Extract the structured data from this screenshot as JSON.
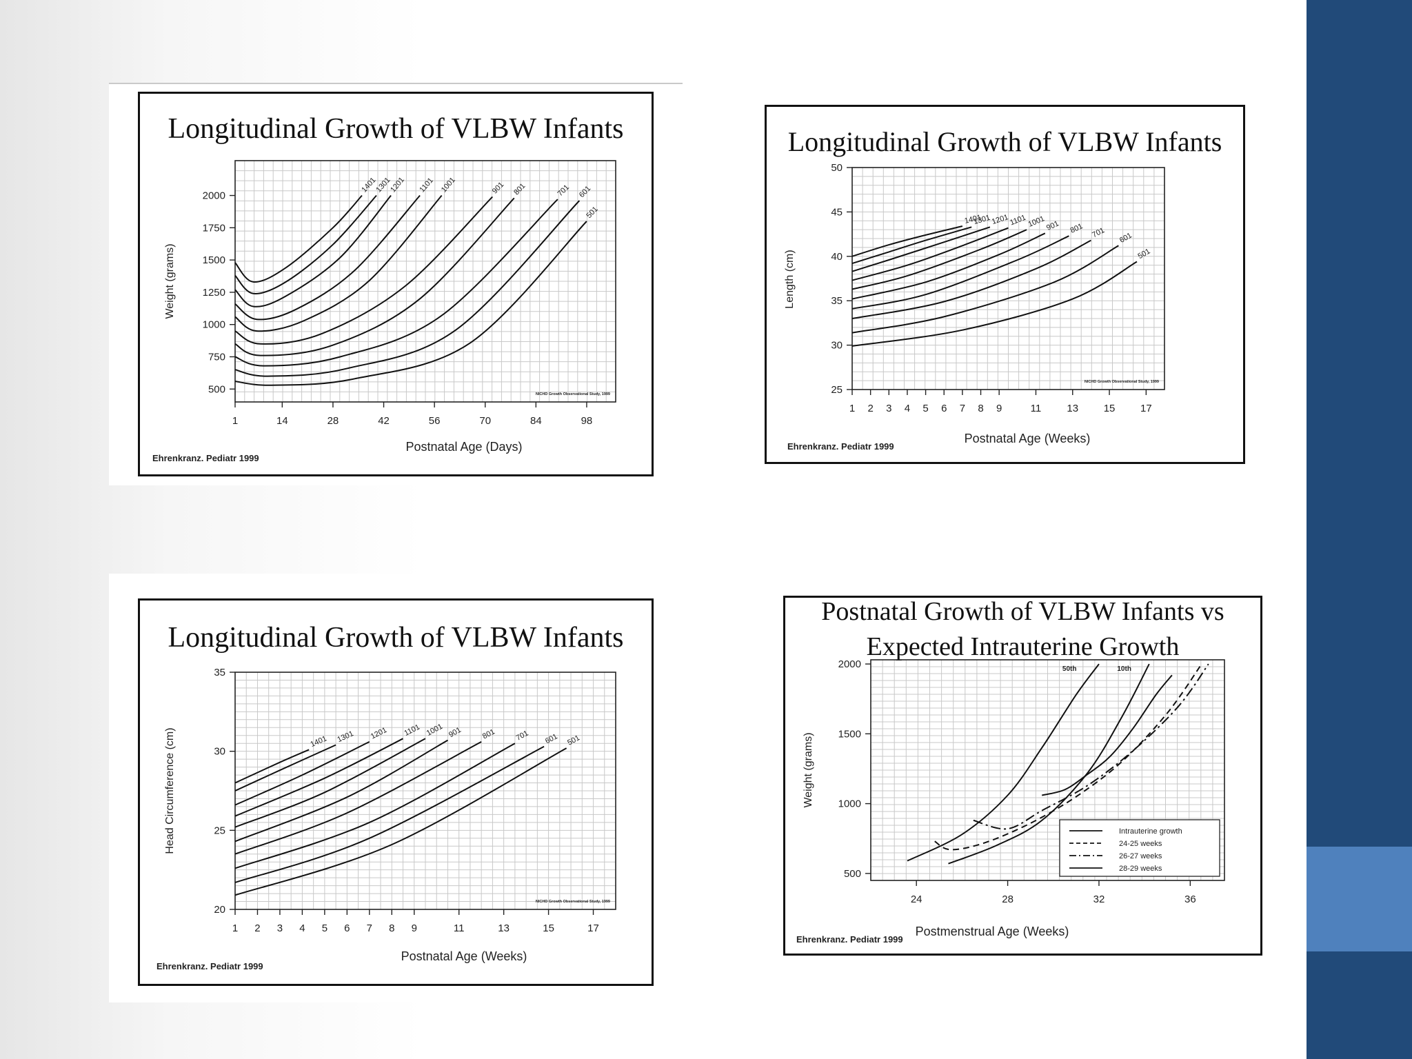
{
  "slide": {
    "accent_color": "#214a79",
    "accent_light": "#4f81bd"
  },
  "chart_data": [
    {
      "id": "weight",
      "type": "line",
      "title": "Longitudinal Growth of VLBW Infants",
      "xlabel": "Postnatal Age (Days)",
      "ylabel": "Weight (grams)",
      "xlim": [
        1,
        106
      ],
      "ylim": [
        400,
        2270
      ],
      "x_ticks": [
        1,
        14,
        28,
        42,
        56,
        70,
        84,
        98
      ],
      "y_ticks": [
        500,
        750,
        1000,
        1250,
        1500,
        1750,
        2000
      ],
      "source": "Ehrenkranz. Pediatr 1999",
      "note": "NICHD Growth Observational Study, 1999",
      "series": [
        {
          "name": "1401",
          "x": [
            1,
            6,
            15,
            28,
            36
          ],
          "y": [
            1480,
            1330,
            1440,
            1750,
            2000
          ]
        },
        {
          "name": "1301",
          "x": [
            1,
            6,
            15,
            28,
            40
          ],
          "y": [
            1380,
            1240,
            1330,
            1620,
            2000
          ]
        },
        {
          "name": "1201",
          "x": [
            1,
            6,
            15,
            30,
            44
          ],
          "y": [
            1270,
            1140,
            1220,
            1520,
            2000
          ]
        },
        {
          "name": "1101",
          "x": [
            1,
            7,
            18,
            34,
            52
          ],
          "y": [
            1160,
            1040,
            1120,
            1420,
            2000
          ]
        },
        {
          "name": "1001",
          "x": [
            1,
            7,
            20,
            38,
            58
          ],
          "y": [
            1060,
            950,
            1030,
            1340,
            2000
          ]
        },
        {
          "name": "901",
          "x": [
            1,
            8,
            25,
            48,
            72
          ],
          "y": [
            950,
            850,
            930,
            1300,
            1990
          ]
        },
        {
          "name": "801",
          "x": [
            1,
            8,
            28,
            52,
            78
          ],
          "y": [
            850,
            760,
            840,
            1200,
            1980
          ]
        },
        {
          "name": "701",
          "x": [
            1,
            9,
            30,
            58,
            90
          ],
          "y": [
            750,
            680,
            750,
            1070,
            1970
          ]
        },
        {
          "name": "601",
          "x": [
            1,
            10,
            32,
            62,
            96
          ],
          "y": [
            650,
            600,
            660,
            960,
            1960
          ]
        },
        {
          "name": "501",
          "x": [
            1,
            11,
            34,
            66,
            98
          ],
          "y": [
            560,
            530,
            580,
            860,
            1800
          ]
        }
      ]
    },
    {
      "id": "length",
      "type": "line",
      "title": "Longitudinal Growth of VLBW Infants",
      "xlabel": "Postnatal Age (Weeks)",
      "ylabel": "Length (cm)",
      "xlim": [
        1,
        18
      ],
      "ylim": [
        25,
        50
      ],
      "x_ticks": [
        1,
        2,
        3,
        4,
        5,
        6,
        7,
        8,
        9,
        11,
        13,
        15,
        17
      ],
      "y_ticks": [
        25,
        30,
        35,
        40,
        45,
        50
      ],
      "source": "Ehrenkranz. Pediatr 1999",
      "note": "NICHD Growth Observational Study, 1999",
      "series": [
        {
          "name": "1401",
          "x": [
            1,
            3,
            5,
            7
          ],
          "y": [
            40,
            41.3,
            42.4,
            43.4
          ]
        },
        {
          "name": "1301",
          "x": [
            1,
            3,
            5,
            7.5
          ],
          "y": [
            39.2,
            40.5,
            41.8,
            43.3
          ]
        },
        {
          "name": "1201",
          "x": [
            1,
            3,
            6,
            8.5
          ],
          "y": [
            38.3,
            39.6,
            41.6,
            43.3
          ]
        },
        {
          "name": "1101",
          "x": [
            1,
            4,
            7,
            9.5
          ],
          "y": [
            37.3,
            39,
            41.2,
            43.2
          ]
        },
        {
          "name": "1001",
          "x": [
            1,
            4,
            8,
            10.5
          ],
          "y": [
            36.3,
            37.8,
            40.8,
            43
          ]
        },
        {
          "name": "901",
          "x": [
            1,
            5,
            9,
            11.5
          ],
          "y": [
            35.2,
            37.1,
            40.2,
            42.6
          ]
        },
        {
          "name": "801",
          "x": [
            1,
            5,
            10,
            12.8
          ],
          "y": [
            34.1,
            35.7,
            39.6,
            42.3
          ]
        },
        {
          "name": "701",
          "x": [
            1,
            6,
            11,
            14
          ],
          "y": [
            33,
            34.9,
            38.6,
            41.8
          ]
        },
        {
          "name": "601",
          "x": [
            1,
            6,
            12,
            15.5
          ],
          "y": [
            31.4,
            33.2,
            37.1,
            41.2
          ]
        },
        {
          "name": "501",
          "x": [
            1,
            7,
            13,
            16.5
          ],
          "y": [
            29.9,
            31.7,
            35.2,
            39.4
          ]
        }
      ]
    },
    {
      "id": "head",
      "type": "line",
      "title": "Longitudinal Growth of VLBW Infants",
      "xlabel": "Postnatal Age (Weeks)",
      "ylabel": "Head Circumference (cm)",
      "xlim": [
        1,
        18
      ],
      "ylim": [
        20,
        35
      ],
      "x_ticks": [
        1,
        2,
        3,
        4,
        5,
        6,
        7,
        8,
        9,
        11,
        13,
        15,
        17
      ],
      "y_ticks": [
        20,
        25,
        30,
        35
      ],
      "source": "Ehrenkranz. Pediatr 1999",
      "note": "NICHD Growth Observational Study, 1999",
      "series": [
        {
          "name": "1401",
          "x": [
            1,
            3,
            4.3
          ],
          "y": [
            28,
            29.3,
            30.1
          ]
        },
        {
          "name": "1301",
          "x": [
            1,
            3,
            5.5
          ],
          "y": [
            27.5,
            28.8,
            30.4
          ]
        },
        {
          "name": "1201",
          "x": [
            1,
            4,
            7
          ],
          "y": [
            26.6,
            28.5,
            30.6
          ]
        },
        {
          "name": "1101",
          "x": [
            1,
            5,
            8.5
          ],
          "y": [
            25.9,
            28.3,
            30.8
          ]
        },
        {
          "name": "1001",
          "x": [
            1,
            5,
            9.5
          ],
          "y": [
            25.2,
            27.4,
            30.8
          ]
        },
        {
          "name": "901",
          "x": [
            1,
            6,
            10.5
          ],
          "y": [
            24.3,
            27.1,
            30.7
          ]
        },
        {
          "name": "801",
          "x": [
            1,
            6,
            12
          ],
          "y": [
            23.5,
            26.1,
            30.6
          ]
        },
        {
          "name": "701",
          "x": [
            1,
            7,
            13.5
          ],
          "y": [
            22.6,
            25.5,
            30.5
          ]
        },
        {
          "name": "601",
          "x": [
            1,
            7,
            14.8
          ],
          "y": [
            21.7,
            24.5,
            30.3
          ]
        },
        {
          "name": "501",
          "x": [
            1,
            8,
            15.8
          ],
          "y": [
            20.9,
            24.1,
            30.2
          ]
        }
      ]
    },
    {
      "id": "intrauterine",
      "type": "line",
      "title": "Postnatal Growth of VLBW Infants vs",
      "subtitle": "Expected Intrauterine Growth",
      "xlabel": "Postmenstrual Age (Weeks)",
      "ylabel": "Weight (grams)",
      "xlim": [
        22,
        37.5
      ],
      "ylim": [
        450,
        2030
      ],
      "x_ticks": [
        24,
        28,
        32,
        36
      ],
      "y_ticks": [
        500,
        1000,
        1500,
        2000
      ],
      "source": "Ehrenkranz. Pediatr 1999",
      "note": "NICHD Growth Observational Study, 1999",
      "annotations": [
        "50th",
        "10th"
      ],
      "legend": [
        "Intrauterine growth",
        "24-25 weeks",
        "26-27 weeks",
        "28-29 weeks"
      ],
      "series": [
        {
          "name": "Intrauterine growth 50th",
          "style": "solid",
          "x": [
            23.6,
            26,
            28,
            29.5,
            31,
            32
          ],
          "y": [
            590,
            780,
            1060,
            1400,
            1780,
            2000
          ]
        },
        {
          "name": "Intrauterine growth 10th",
          "style": "solid",
          "x": [
            25.4,
            27.5,
            29.5,
            31.5,
            33,
            34.2
          ],
          "y": [
            570,
            700,
            880,
            1220,
            1620,
            2000
          ]
        },
        {
          "name": "24-25 weeks",
          "style": "dashed",
          "x": [
            24.8,
            25.5,
            27,
            29,
            31,
            33,
            35,
            36.5
          ],
          "y": [
            730,
            670,
            720,
            860,
            1050,
            1300,
            1650,
            2000
          ]
        },
        {
          "name": "26-27 weeks",
          "style": "dashdot",
          "x": [
            26.5,
            28,
            29.5,
            31.5,
            33.5,
            35.5,
            36.8
          ],
          "y": [
            880,
            820,
            950,
            1130,
            1380,
            1700,
            2000
          ]
        },
        {
          "name": "28-29 weeks",
          "style": "solid",
          "x": [
            29.5,
            30.5,
            31.5,
            32.5,
            33.5,
            34.5,
            35.2
          ],
          "y": [
            1060,
            1100,
            1210,
            1340,
            1540,
            1780,
            1920
          ]
        }
      ]
    }
  ]
}
